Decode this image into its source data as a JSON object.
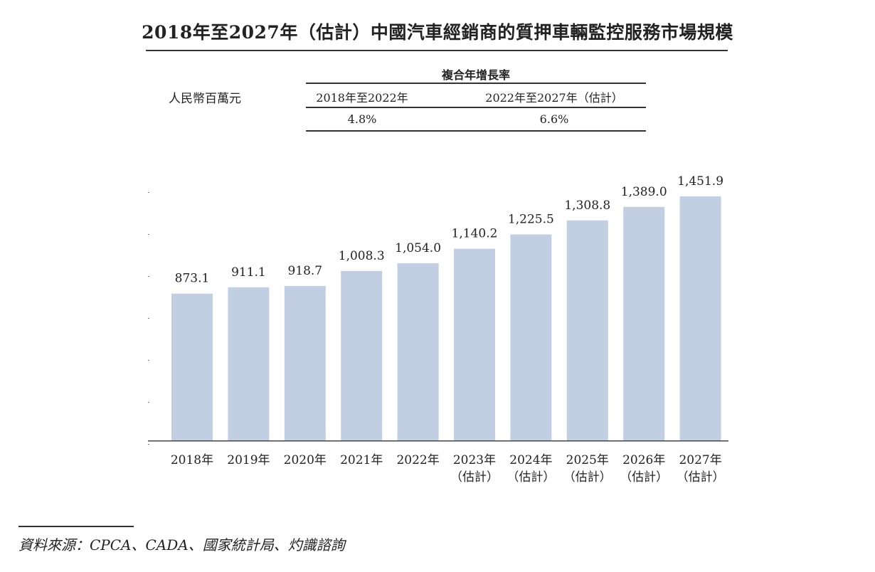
{
  "title": "2018年至2027年（估計）中國汽車經銷商的質押車輛監控服務市場規模",
  "unit_label": "人民幣百萬元",
  "cagr_table": {
    "header": "複合年增長率",
    "columns": [
      {
        "period": "2018年至2022年",
        "value": "4.8%"
      },
      {
        "period": "2022年至2027年（估計）",
        "value": "6.6%"
      }
    ]
  },
  "chart_data": {
    "type": "bar",
    "categories": [
      "2018年",
      "2019年",
      "2020年",
      "2021年",
      "2022年",
      "2023年\n（估計）",
      "2024年\n（估計）",
      "2025年\n（估計）",
      "2026年\n（估計）",
      "2027年\n（估計）"
    ],
    "values": [
      873.1,
      911.1,
      918.7,
      1008.3,
      1054.0,
      1140.2,
      1225.5,
      1308.8,
      1389.0,
      1451.9
    ],
    "value_labels": [
      "873.1",
      "911.1",
      "918.7",
      "1,008.3",
      "1,054.0",
      "1,140.2",
      "1,225.5",
      "1,308.8",
      "1,389.0",
      "1,451.9"
    ],
    "ylim": [
      0,
      1500
    ],
    "bar_color": "#c2cfe2"
  },
  "source": "資料來源：CPCA、CADA、國家統計局、灼識諮詢"
}
